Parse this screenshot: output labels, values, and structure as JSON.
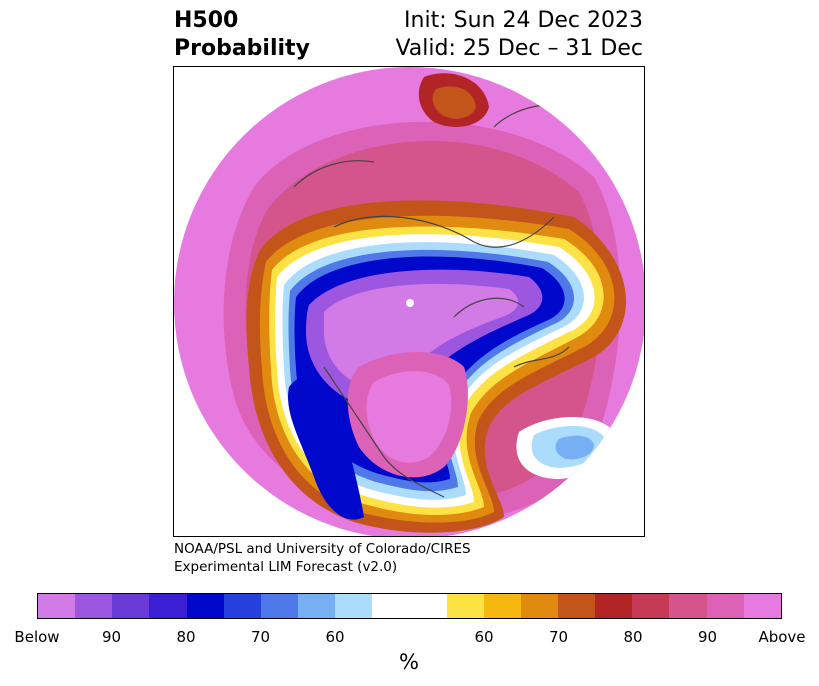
{
  "header": {
    "variable": "H500",
    "product": "Probability",
    "init": "Init: Sun 24 Dec 2023",
    "valid": "Valid: 25 Dec – 31 Dec"
  },
  "credit": {
    "line1": "NOAA/PSL and University of Colorado/CIRES",
    "line2": "Experimental LIM Forecast (v2.0)"
  },
  "colorbar": {
    "colors": [
      "#d27ae6",
      "#9c56df",
      "#6a3bd6",
      "#3b1fd3",
      "#0008cc",
      "#2741dc",
      "#4f79e8",
      "#76b0f3",
      "#acdcfb",
      "#ffffff",
      "#ffffff",
      "#fde245",
      "#f5b80f",
      "#e08a10",
      "#c4551a",
      "#b32427",
      "#c63a55",
      "#d3558b",
      "#dc62b8",
      "#e77ade"
    ],
    "tick_labels": [
      "Below",
      "90",
      "80",
      "70",
      "60",
      "60",
      "70",
      "80",
      "90",
      "Above"
    ],
    "units": "%"
  },
  "map": {
    "layers": [
      {
        "name": "above-strong-siberia",
        "color": "#b32427"
      },
      {
        "name": "below-strong-arctic",
        "color": "#0008cc"
      },
      {
        "name": "above-strong-pacific",
        "color": "#c4551a"
      },
      {
        "name": "below-weak-atlantic",
        "color": "#76b0f3"
      }
    ]
  }
}
